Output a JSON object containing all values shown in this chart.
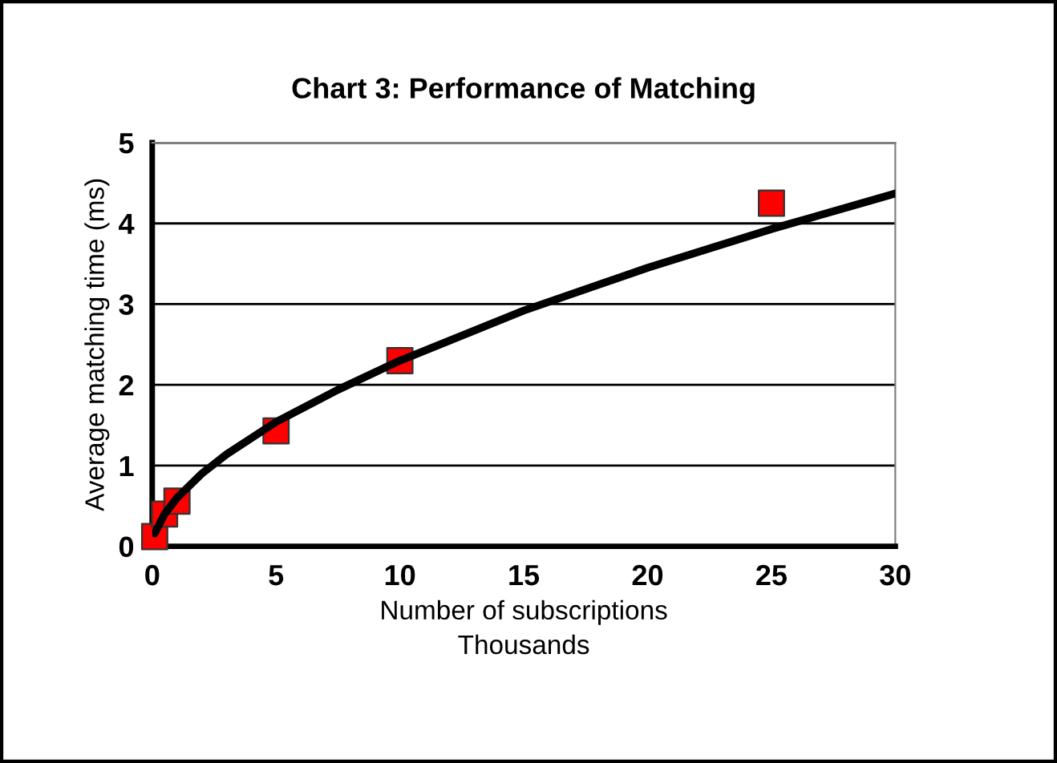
{
  "chart_data": {
    "type": "scatter",
    "title": "Chart 3: Performance of Matching",
    "xlabel": "Number of subscriptions\nThousands",
    "ylabel": "Average matching time (ms)",
    "series": [
      {
        "color": "#ff0000",
        "marker": "square",
        "x": [
          0.1,
          0.5,
          1,
          5,
          10,
          25
        ],
        "values": [
          0.12,
          0.4,
          0.56,
          1.43,
          2.3,
          4.25
        ]
      },
      {
        "type": "line",
        "color": "#000000",
        "marker": "none",
        "line_style": "solid",
        "x": [
          0.1,
          0.5,
          1,
          2,
          3,
          5,
          7.5,
          10,
          15,
          20,
          25,
          30
        ],
        "values": [
          0.16,
          0.4,
          0.6,
          0.9,
          1.14,
          1.54,
          1.94,
          2.3,
          2.92,
          3.45,
          3.93,
          4.37
        ]
      }
    ],
    "xlim": [
      0,
      30
    ],
    "xticks": [
      0,
      5,
      10,
      15,
      20,
      25,
      30
    ],
    "ylim": [
      0,
      5
    ],
    "yticks": [
      0,
      1,
      2,
      3,
      4,
      5
    ],
    "grid": "y",
    "legend": false
  }
}
